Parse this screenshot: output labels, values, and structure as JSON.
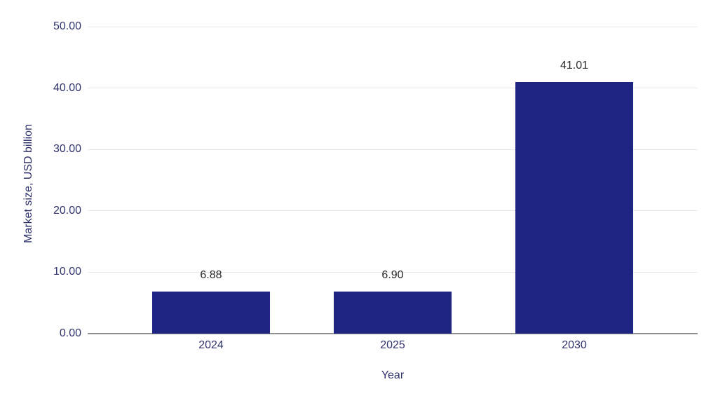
{
  "chart_data": {
    "type": "bar",
    "categories": [
      "2024",
      "2025",
      "2030"
    ],
    "values": [
      6.88,
      6.9,
      41.01
    ],
    "data_labels": [
      "6.88",
      "6.90",
      "41.01"
    ],
    "title": "",
    "xlabel": "Year",
    "ylabel": "Market size, USD billion",
    "ylim": [
      0,
      50
    ],
    "yticks": [
      {
        "value": 0,
        "label": "0.00"
      },
      {
        "value": 10,
        "label": "10.00"
      },
      {
        "value": 20,
        "label": "20.00"
      },
      {
        "value": 30,
        "label": "30.00"
      },
      {
        "value": 40,
        "label": "40.00"
      },
      {
        "value": 50,
        "label": "50.00"
      }
    ],
    "grid": "horizontal",
    "legend": "none"
  },
  "colors": {
    "bar": "#1e2482",
    "axis_text": "#2f336b",
    "data_label": "#282828",
    "gridline": "#e8e8e8",
    "axis_line": "#8f8f8f",
    "background": "#ffffff"
  }
}
